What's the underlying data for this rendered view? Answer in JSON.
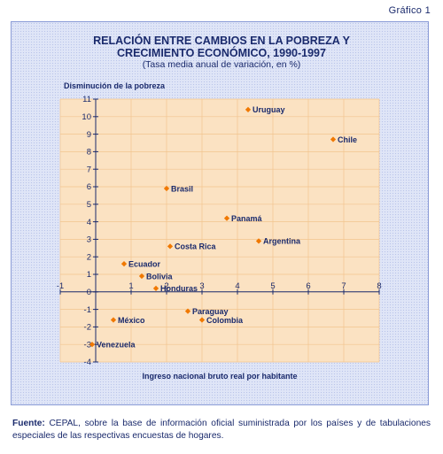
{
  "figure_label": "Gráfico 1",
  "chart_data": {
    "type": "scatter",
    "title_line1": "RELACIÓN ENTRE CAMBIOS EN LA POBREZA Y",
    "title_line2": "CRECIMIENTO ECONÓMICO, 1990-1997",
    "subtitle": "(Tasa media anual de variación, en %)",
    "xlabel": "Ingreso nacional bruto real por habitante",
    "ylabel": "Disminución de la pobreza",
    "xlim": [
      -1,
      8
    ],
    "ylim": [
      -4,
      11
    ],
    "x_ticks": [
      -1,
      0,
      1,
      2,
      3,
      4,
      5,
      6,
      7,
      8
    ],
    "y_ticks": [
      -4,
      -3,
      -2,
      -1,
      0,
      1,
      2,
      3,
      4,
      5,
      6,
      7,
      8,
      9,
      10,
      11
    ],
    "grid": true,
    "points": [
      {
        "label": "Uruguay",
        "x": 4.3,
        "y": 10.4
      },
      {
        "label": "Chile",
        "x": 6.7,
        "y": 8.7
      },
      {
        "label": "Brasil",
        "x": 2.0,
        "y": 5.9
      },
      {
        "label": "Panamá",
        "x": 3.7,
        "y": 4.2
      },
      {
        "label": "Argentina",
        "x": 4.6,
        "y": 2.9
      },
      {
        "label": "Costa Rica",
        "x": 2.1,
        "y": 2.6
      },
      {
        "label": "Ecuador",
        "x": 0.8,
        "y": 1.6
      },
      {
        "label": "Bolivia",
        "x": 1.3,
        "y": 0.9
      },
      {
        "label": "Honduras",
        "x": 1.7,
        "y": 0.2
      },
      {
        "label": "Paraguay",
        "x": 2.6,
        "y": -1.1
      },
      {
        "label": "Colombia",
        "x": 3.0,
        "y": -1.6
      },
      {
        "label": "México",
        "x": 0.5,
        "y": -1.6
      },
      {
        "label": "Venezuela",
        "x": -0.1,
        "y": -3.0
      }
    ],
    "marker_color": "#f07800",
    "text_color": "#1a2a6c",
    "plot_bg": "#fbe2c2"
  },
  "footer": {
    "source_label": "Fuente:",
    "source_text": " CEPAL, sobre la base de información oficial suministrada por los países y de tabulaciones especiales de las respectivas encuestas de hogares."
  }
}
